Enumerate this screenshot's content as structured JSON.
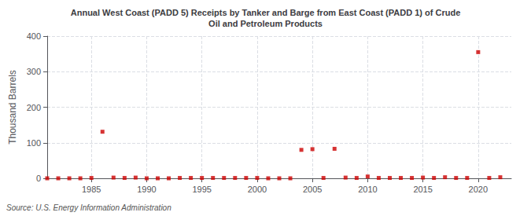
{
  "chart_data": {
    "type": "scatter",
    "title": "Annual West Coast (PADD 5) Receipts by Tanker and Barge from East Coast (PADD 1) of Crude\nOil and Petroleum Products",
    "ylabel": "Thousand Barrels",
    "source": "Source: U.S. Energy Information Administration",
    "x": [
      1981,
      1982,
      1983,
      1984,
      1985,
      1986,
      1987,
      1988,
      1989,
      1990,
      1991,
      1992,
      1993,
      1994,
      1995,
      1996,
      1997,
      1998,
      1999,
      2000,
      2001,
      2002,
      2003,
      2004,
      2005,
      2006,
      2007,
      2008,
      2009,
      2010,
      2011,
      2012,
      2013,
      2014,
      2015,
      2016,
      2017,
      2018,
      2019,
      2020,
      2021,
      2022
    ],
    "values": [
      0,
      0,
      0,
      0,
      1,
      131,
      2,
      1,
      2,
      0,
      0,
      0,
      1,
      1,
      1,
      1,
      1,
      1,
      1,
      1,
      0,
      0,
      0,
      80,
      82,
      1,
      83,
      2,
      1,
      5,
      1,
      1,
      1,
      1,
      2,
      1,
      3,
      1,
      1,
      355,
      1,
      3
    ],
    "color": "#cc0000",
    "marker": "square",
    "xlim": [
      1981,
      2023
    ],
    "ylim": [
      0,
      400
    ],
    "xticks": [
      1985,
      1990,
      1995,
      2000,
      2005,
      2010,
      2015,
      2020
    ],
    "yticks": [
      0,
      100,
      200,
      300,
      400
    ],
    "grid": true
  }
}
